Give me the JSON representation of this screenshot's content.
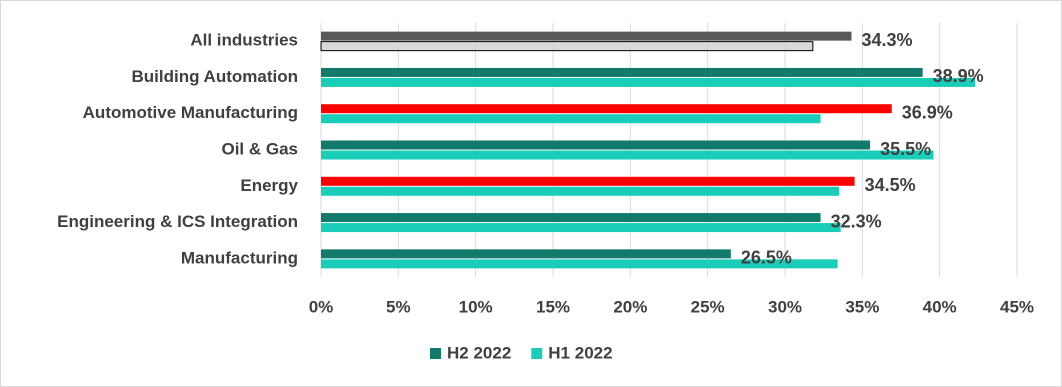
{
  "chart_data": {
    "type": "hbar",
    "categories": [
      "All industries",
      "Building Automation",
      "Automotive Manufacturing",
      "Oil & Gas",
      "Energy",
      "Engineering & ICS Integration",
      "Manufacturing"
    ],
    "series": [
      {
        "name": "H2 2022",
        "color": "#127a6a",
        "colors": [
          "#595959",
          "#127a6a",
          "#ff0000",
          "#127a6a",
          "#ff0000",
          "#127a6a",
          "#127a6a"
        ],
        "values": [
          34.3,
          38.9,
          36.9,
          35.5,
          34.5,
          32.3,
          26.5
        ],
        "value_labels": [
          "34.3%",
          "38.9%",
          "36.9%",
          "35.5%",
          "34.5%",
          "32.3%",
          "26.5%"
        ]
      },
      {
        "name": "H1 2022",
        "color": "#19cdb9",
        "colors": [
          "#d9d9d9",
          "#19cdb9",
          "#19cdb9",
          "#19cdb9",
          "#19cdb9",
          "#19cdb9",
          "#19cdb9"
        ],
        "values": [
          31.8,
          42.3,
          32.3,
          39.6,
          33.5,
          33.6,
          33.4
        ]
      }
    ],
    "xlim": [
      0,
      45
    ],
    "xticks": [
      {
        "value": 0,
        "label": "0%"
      },
      {
        "value": 5,
        "label": "5%"
      },
      {
        "value": 10,
        "label": "10%"
      },
      {
        "value": 15,
        "label": "15%"
      },
      {
        "value": 20,
        "label": "20%"
      },
      {
        "value": 25,
        "label": "25%"
      },
      {
        "value": 30,
        "label": "30%"
      },
      {
        "value": 35,
        "label": "35%"
      },
      {
        "value": 40,
        "label": "40%"
      },
      {
        "value": 45,
        "label": "45%"
      }
    ],
    "grid": true,
    "legend": "bottom"
  }
}
